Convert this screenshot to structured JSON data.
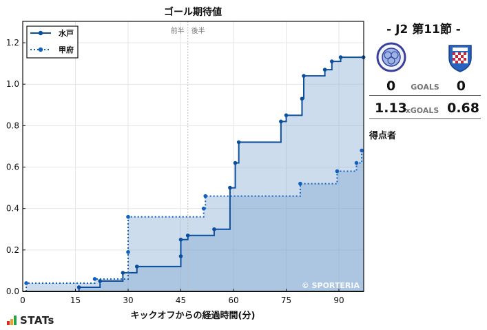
{
  "chart_data": {
    "type": "line",
    "subtype": "step-cumulative",
    "title": "ゴール期待値",
    "xlabel": "キックオフからの経過時間(分)",
    "ylabel": "",
    "xlim": [
      0,
      97
    ],
    "ylim": [
      0,
      1.3
    ],
    "x_ticks": [
      0,
      15,
      30,
      45,
      60,
      75,
      90
    ],
    "y_ticks": [
      0.0,
      0.2,
      0.4,
      0.6,
      0.8,
      1.0,
      1.2
    ],
    "y_tick_labels": [
      "0.0",
      "0.2",
      "0.4",
      "0.6",
      "0.8",
      "1.0",
      "1.2"
    ],
    "grid": true,
    "legend_position": "upper-left",
    "half_markers": {
      "x": 47,
      "first": "前半",
      "second": "後半"
    },
    "watermark": "© SPORTERIA",
    "series": [
      {
        "name": "水戸",
        "style": "solid",
        "color": "#0b4f9c",
        "points": [
          [
            0,
            0
          ],
          [
            16,
            0.02
          ],
          [
            22,
            0.05
          ],
          [
            28.5,
            0.09
          ],
          [
            32.5,
            0.12
          ],
          [
            45,
            0.17
          ],
          [
            45,
            0.25
          ],
          [
            47,
            0.27
          ],
          [
            54.5,
            0.3
          ],
          [
            59,
            0.5
          ],
          [
            60.5,
            0.62
          ],
          [
            61.5,
            0.72
          ],
          [
            73.5,
            0.82
          ],
          [
            75,
            0.85
          ],
          [
            79.5,
            0.93
          ],
          [
            80,
            1.04
          ],
          [
            86,
            1.07
          ],
          [
            88,
            1.11
          ],
          [
            90.5,
            1.13
          ],
          [
            97,
            1.13
          ]
        ]
      },
      {
        "name": "甲府",
        "style": "dotted",
        "color": "#1060c0",
        "points": [
          [
            0,
            0
          ],
          [
            1,
            0.04
          ],
          [
            20.5,
            0.06
          ],
          [
            30,
            0.19
          ],
          [
            30,
            0.36
          ],
          [
            51.5,
            0.4
          ],
          [
            52,
            0.46
          ],
          [
            79,
            0.52
          ],
          [
            89.5,
            0.58
          ],
          [
            95,
            0.62
          ],
          [
            96.5,
            0.68
          ]
        ]
      }
    ]
  },
  "match": {
    "round": "- J2 第11節 -",
    "home": {
      "name": "水戸",
      "goals": "0",
      "xg": "1.13"
    },
    "away": {
      "name": "甲府",
      "goals": "0",
      "xg": "0.68"
    },
    "goals_label": "GOALS",
    "xg_label": "xGOALS",
    "scorers_label": "得点者"
  },
  "brand": {
    "name": "STATs",
    "bar_colors": [
      "#d62a2a",
      "#f0a020",
      "#2aa04a"
    ]
  }
}
